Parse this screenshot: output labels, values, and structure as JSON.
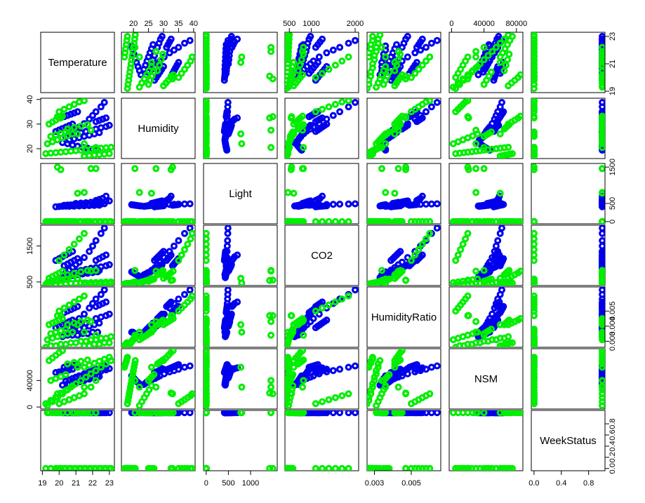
{
  "chart_data": {
    "type": "scatter",
    "subtype": "pairs-matrix",
    "variables": [
      {
        "name": "Temperature",
        "range": [
          18.9,
          23.3
        ],
        "ticks": [
          19,
          21,
          23
        ],
        "tick_labels_bottom": [
          "19",
          "20",
          "21",
          "22",
          "23"
        ],
        "ticks_bottom": [
          19,
          20,
          21,
          22,
          23
        ],
        "tick_labels_right": [
          "19",
          "21",
          "23"
        ]
      },
      {
        "name": "Humidity",
        "range": [
          16,
          40.5
        ],
        "ticks": [
          20,
          25,
          30,
          35,
          40
        ],
        "tick_labels_top": [
          "20",
          "25",
          "30",
          "35",
          "40"
        ],
        "tick_labels_left": [
          "20",
          "30",
          "40"
        ],
        "ticks_left": [
          20,
          30,
          40
        ]
      },
      {
        "name": "Light",
        "range": [
          -60,
          1600
        ],
        "ticks": [
          0,
          500,
          1500
        ],
        "tick_labels_right": [
          "0",
          "500",
          "1500"
        ],
        "ticks_bottom": [
          0,
          500,
          1000
        ],
        "tick_labels_bottom": [
          "0",
          "500",
          "1000"
        ]
      },
      {
        "name": "CO2",
        "range": [
          400,
          2080
        ],
        "ticks_top": [
          500,
          1000,
          2000
        ],
        "tick_labels_top": [
          "500",
          "1000",
          "2000"
        ],
        "ticks_left": [
          500,
          1500
        ],
        "tick_labels_left": [
          "500",
          "1500"
        ]
      },
      {
        "name": "HumidityRatio",
        "range": [
          0.0026,
          0.0066
        ],
        "ticks_bottom": [
          0.003,
          0.005
        ],
        "tick_labels_bottom": [
          "0.003",
          "0.005"
        ],
        "ticks_right": [
          0.003,
          0.004,
          0.005
        ],
        "tick_labels_right": [
          "0.003",
          "0.004",
          "0.005"
        ]
      },
      {
        "name": "NSM",
        "range": [
          -3000,
          88000
        ],
        "ticks_top": [
          0,
          40000,
          80000
        ],
        "tick_labels_top": [
          "0",
          "40000",
          "80000"
        ],
        "ticks_left": [
          0,
          40000
        ],
        "tick_labels_left": [
          "0",
          "40000"
        ]
      },
      {
        "name": "WeekStatus",
        "range": [
          -0.04,
          1.04
        ],
        "ticks_bottom": [
          0,
          0.4,
          0.8
        ],
        "tick_labels_bottom": [
          "0.0",
          "0.4",
          "0.8"
        ],
        "ticks_right": [
          0,
          0.2,
          0.4,
          0.6,
          0.8
        ],
        "tick_labels_right": [
          "0.0",
          "0.2",
          "0.4",
          "0.6",
          "0.8"
        ]
      }
    ],
    "series": [
      {
        "color": "#0000ee",
        "points": [
          [
            20.4,
            24.8,
            440,
            760,
            0.0037,
            39000,
            1
          ],
          [
            20.6,
            26.1,
            450,
            830,
            0.0039,
            41000,
            1
          ],
          [
            20.8,
            27.2,
            455,
            900,
            0.0041,
            43000,
            1
          ],
          [
            21.0,
            28.0,
            460,
            980,
            0.0043,
            45000,
            1
          ],
          [
            21.2,
            28.8,
            465,
            1050,
            0.0045,
            47000,
            1
          ],
          [
            21.5,
            30.2,
            470,
            1180,
            0.0048,
            50000,
            1
          ],
          [
            21.8,
            32.0,
            470,
            1350,
            0.0052,
            53000,
            1
          ],
          [
            22.0,
            33.5,
            475,
            1500,
            0.0055,
            55000,
            1
          ],
          [
            22.2,
            35.0,
            480,
            1650,
            0.0058,
            57000,
            1
          ],
          [
            22.5,
            37.0,
            485,
            1850,
            0.0061,
            60000,
            1
          ],
          [
            22.7,
            38.8,
            490,
            2000,
            0.0064,
            62000,
            1
          ],
          [
            20.2,
            22.5,
            430,
            620,
            0.0033,
            33000,
            1
          ],
          [
            20.5,
            22.0,
            435,
            650,
            0.0034,
            35000,
            1
          ],
          [
            20.8,
            21.5,
            440,
            680,
            0.0034,
            37000,
            1
          ],
          [
            21.1,
            21.0,
            445,
            700,
            0.0034,
            39000,
            1
          ],
          [
            21.4,
            20.6,
            450,
            720,
            0.0035,
            41000,
            1
          ],
          [
            21.7,
            20.2,
            455,
            740,
            0.0035,
            43000,
            1
          ],
          [
            22.0,
            19.8,
            460,
            760,
            0.0036,
            45000,
            1
          ],
          [
            22.3,
            19.4,
            465,
            780,
            0.0036,
            47000,
            1
          ],
          [
            21.0,
            26.0,
            500,
            800,
            0.004,
            44000,
            1
          ],
          [
            21.3,
            26.5,
            510,
            820,
            0.0041,
            46000,
            1
          ],
          [
            21.6,
            27.0,
            520,
            850,
            0.0042,
            48000,
            1
          ],
          [
            21.9,
            27.5,
            530,
            880,
            0.0043,
            50000,
            1
          ],
          [
            22.2,
            28.0,
            540,
            900,
            0.0045,
            52000,
            1
          ],
          [
            22.5,
            28.5,
            550,
            920,
            0.0046,
            54000,
            1
          ],
          [
            22.8,
            29.0,
            560,
            950,
            0.0047,
            56000,
            1
          ],
          [
            23.0,
            29.5,
            570,
            980,
            0.0048,
            58000,
            1
          ],
          [
            20.6,
            23.5,
            420,
            700,
            0.0036,
            34000,
            1
          ],
          [
            20.9,
            24.0,
            425,
            720,
            0.0037,
            36000,
            1
          ],
          [
            21.2,
            24.5,
            430,
            740,
            0.0038,
            38000,
            1
          ],
          [
            21.5,
            25.0,
            435,
            760,
            0.0039,
            40000,
            1
          ],
          [
            21.8,
            25.5,
            440,
            780,
            0.004,
            42000,
            1
          ],
          [
            22.1,
            26.0,
            445,
            800,
            0.0041,
            44000,
            1
          ],
          [
            22.4,
            26.5,
            450,
            820,
            0.0042,
            46000,
            1
          ],
          [
            19.8,
            27.0,
            410,
            1100,
            0.0039,
            52000,
            1
          ],
          [
            20.0,
            27.6,
            415,
            1150,
            0.004,
            53000,
            1
          ],
          [
            20.2,
            28.2,
            420,
            1200,
            0.0041,
            54000,
            1
          ],
          [
            20.4,
            28.8,
            425,
            1250,
            0.0042,
            55000,
            1
          ],
          [
            20.6,
            29.4,
            430,
            1300,
            0.0043,
            56000,
            1
          ],
          [
            20.8,
            30.0,
            435,
            1350,
            0.0044,
            57000,
            1
          ],
          [
            20.3,
            33.0,
            450,
            950,
            0.0049,
            60000,
            1
          ],
          [
            20.5,
            33.5,
            455,
            1000,
            0.005,
            61000,
            1
          ],
          [
            20.7,
            34.0,
            460,
            1050,
            0.0051,
            62000,
            1
          ],
          [
            20.9,
            34.5,
            465,
            1100,
            0.0052,
            63000,
            1
          ],
          [
            21.1,
            35.0,
            470,
            1150,
            0.0053,
            64000,
            1
          ],
          [
            22.6,
            32.0,
            640,
            1200,
            0.0055,
            58000,
            1
          ],
          [
            22.4,
            31.5,
            610,
            1150,
            0.0054,
            57000,
            1
          ],
          [
            22.2,
            31.0,
            580,
            1100,
            0.0053,
            56000,
            1
          ],
          [
            22.8,
            32.5,
            700,
            1250,
            0.0056,
            59000,
            1
          ]
        ]
      },
      {
        "color": "#00ee00",
        "points": [
          [
            19.2,
            18.0,
            0,
            430,
            0.0026,
            5000,
            0
          ],
          [
            19.5,
            18.2,
            0,
            440,
            0.0027,
            10000,
            0
          ],
          [
            19.8,
            18.4,
            0,
            445,
            0.0027,
            15000,
            0
          ],
          [
            20.1,
            18.6,
            0,
            450,
            0.0028,
            20000,
            0
          ],
          [
            20.4,
            18.8,
            0,
            455,
            0.0028,
            25000,
            0
          ],
          [
            20.7,
            19.0,
            0,
            460,
            0.0029,
            30000,
            0
          ],
          [
            21.0,
            19.2,
            0,
            465,
            0.0029,
            35000,
            0
          ],
          [
            21.3,
            19.4,
            0,
            470,
            0.003,
            40000,
            0
          ],
          [
            21.6,
            19.6,
            0,
            475,
            0.003,
            45000,
            0
          ],
          [
            21.9,
            19.8,
            0,
            480,
            0.0031,
            50000,
            0
          ],
          [
            22.2,
            20.0,
            0,
            485,
            0.0031,
            55000,
            0
          ],
          [
            22.5,
            20.2,
            0,
            490,
            0.0032,
            60000,
            0
          ],
          [
            22.8,
            20.4,
            0,
            495,
            0.0032,
            65000,
            0
          ],
          [
            23.1,
            20.6,
            0,
            500,
            0.0033,
            70000,
            0
          ],
          [
            19.3,
            22.0,
            0,
            480,
            0.0031,
            2000,
            1
          ],
          [
            19.6,
            22.8,
            0,
            500,
            0.0032,
            8000,
            1
          ],
          [
            19.9,
            23.6,
            0,
            520,
            0.0033,
            14000,
            1
          ],
          [
            20.2,
            24.4,
            0,
            540,
            0.0034,
            20000,
            1
          ],
          [
            20.5,
            25.2,
            0,
            560,
            0.0035,
            26000,
            1
          ],
          [
            20.8,
            26.0,
            0,
            580,
            0.0036,
            32000,
            1
          ],
          [
            19.4,
            30.0,
            0,
            600,
            0.0041,
            70000,
            1
          ],
          [
            19.6,
            30.8,
            0,
            650,
            0.0042,
            74000,
            1
          ],
          [
            19.8,
            31.6,
            0,
            700,
            0.0043,
            78000,
            1
          ],
          [
            20.0,
            32.4,
            0,
            750,
            0.0044,
            82000,
            1
          ],
          [
            20.2,
            33.2,
            0,
            800,
            0.0045,
            85000,
            1
          ],
          [
            20.0,
            35.0,
            0,
            1100,
            0.005,
            5000,
            0
          ],
          [
            20.3,
            36.0,
            0,
            1250,
            0.0052,
            8000,
            0
          ],
          [
            20.6,
            37.0,
            0,
            1400,
            0.0054,
            11000,
            0
          ],
          [
            20.9,
            38.0,
            0,
            1550,
            0.0056,
            14000,
            0
          ],
          [
            21.2,
            39.0,
            0,
            1700,
            0.0058,
            17000,
            0
          ],
          [
            21.5,
            39.5,
            0,
            1850,
            0.006,
            20000,
            0
          ],
          [
            21.5,
            17.0,
            0,
            440,
            0.0027,
            60000,
            0
          ],
          [
            21.8,
            17.2,
            0,
            445,
            0.0027,
            63000,
            0
          ],
          [
            22.1,
            17.4,
            0,
            450,
            0.0028,
            66000,
            0
          ],
          [
            22.4,
            17.6,
            0,
            455,
            0.0028,
            69000,
            0
          ],
          [
            22.7,
            17.8,
            0,
            460,
            0.0029,
            72000,
            0
          ],
          [
            23.0,
            18.0,
            0,
            465,
            0.0029,
            75000,
            0
          ],
          [
            19.5,
            25.0,
            0,
            520,
            0.0035,
            40000,
            0
          ],
          [
            19.8,
            25.6,
            0,
            540,
            0.0036,
            43000,
            0
          ],
          [
            20.1,
            26.2,
            0,
            560,
            0.0037,
            46000,
            0
          ],
          [
            20.4,
            26.8,
            0,
            580,
            0.0038,
            49000,
            0
          ],
          [
            20.5,
            28.0,
            0,
            700,
            0.0041,
            65000,
            1
          ],
          [
            20.9,
            28.6,
            0,
            740,
            0.0042,
            67000,
            1
          ],
          [
            21.3,
            29.2,
            0,
            780,
            0.0043,
            69000,
            1
          ],
          [
            21.7,
            29.8,
            0,
            820,
            0.0044,
            71000,
            1
          ],
          [
            19.9,
            33.0,
            1500,
            550,
            0.0047,
            20000,
            0
          ],
          [
            20.1,
            32.5,
            1430,
            540,
            0.0047,
            21000,
            0
          ],
          [
            21.1,
            26.0,
            780,
            600,
            0.0041,
            60000,
            1
          ],
          [
            21.5,
            22.0,
            800,
            470,
            0.0036,
            30000,
            1
          ],
          [
            21.9,
            27.5,
            1460,
            800,
            0.0043,
            30000,
            1
          ],
          [
            22.2,
            20.5,
            1460,
            820,
            0.0034,
            40000,
            1
          ]
        ]
      }
    ]
  }
}
